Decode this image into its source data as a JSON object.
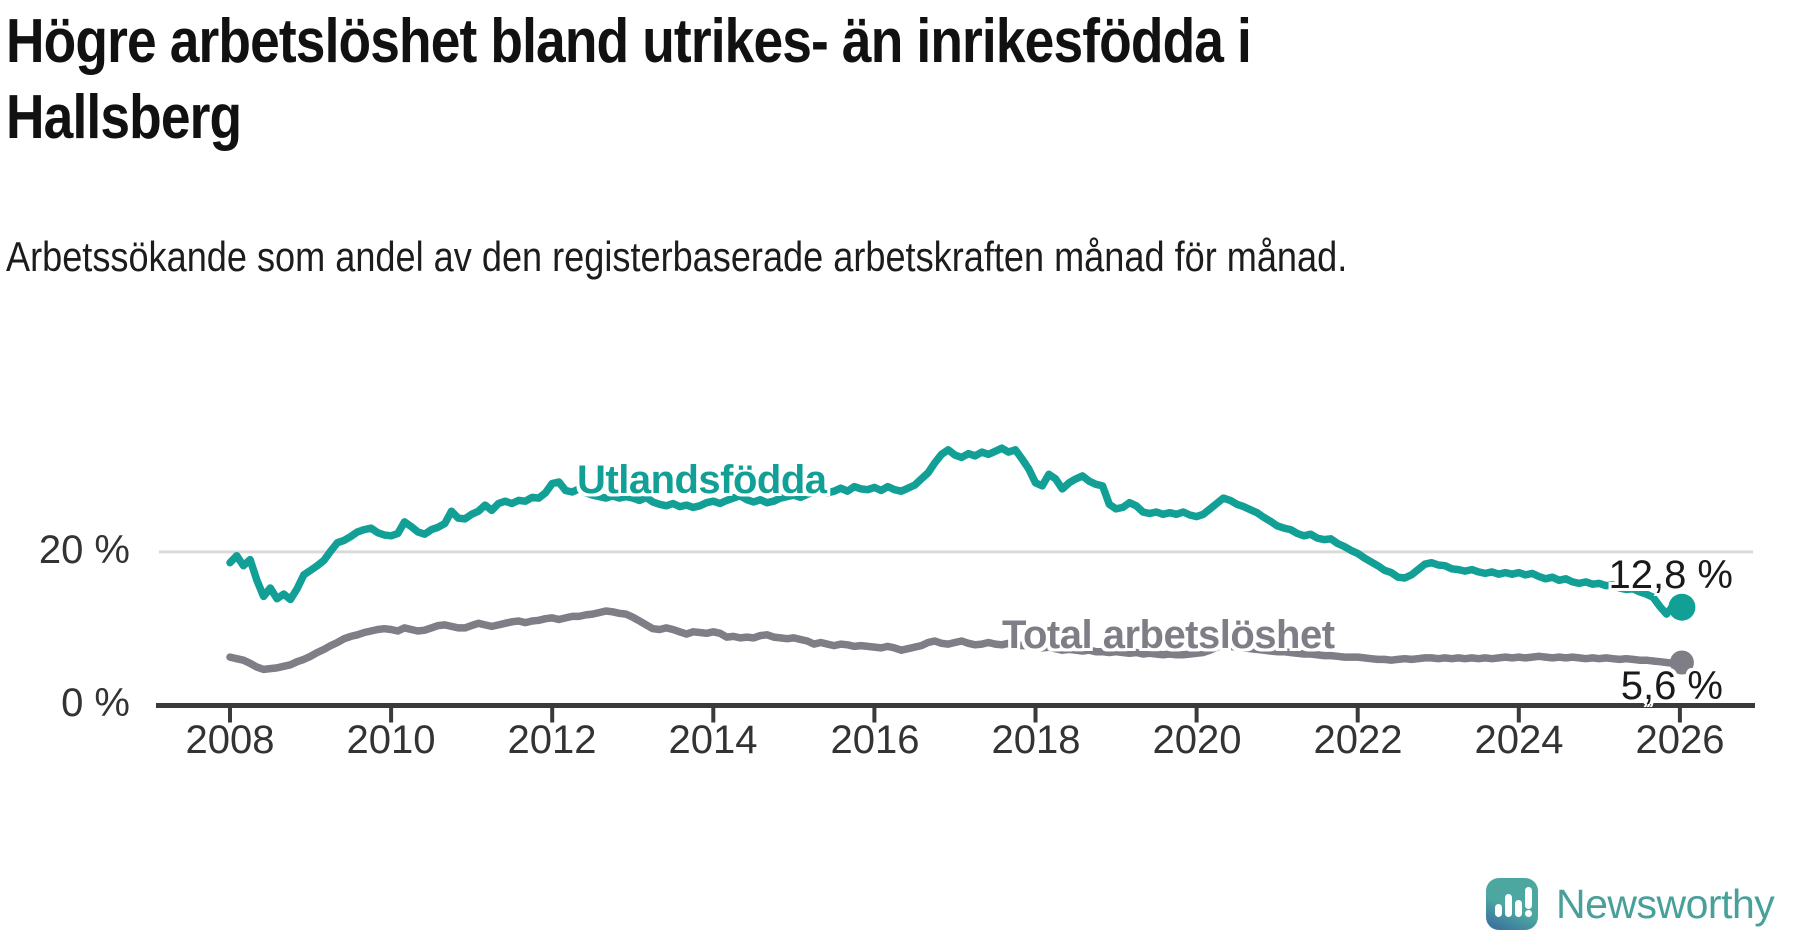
{
  "header": {
    "title": "Högre arbetslöshet bland utrikes- än inrikesfödda i Hallsberg",
    "subtitle": "Arbetssökande som andel av den registerbaserade arbetskraften månad för månad."
  },
  "branding": {
    "logo_text": "Newsworthy"
  },
  "chart_data": {
    "type": "line",
    "title": "Högre arbetslöshet bland utrikes- än inrikesfödda i Hallsberg",
    "subtitle": "Arbetssökande som andel av den registerbaserade arbetskraften månad för månad.",
    "x_unit": "month",
    "x_range": [
      2008,
      2026
    ],
    "x_tick_labels": [
      "2008",
      "2010",
      "2012",
      "2014",
      "2016",
      "2018",
      "2020",
      "2022",
      "2024",
      "2026"
    ],
    "y_tick_labels": {
      "grid": "20 %",
      "base": "0 %"
    },
    "ylim": [
      0,
      35
    ],
    "grid": "single horizontal gridline at 20 %",
    "legend_position": "inline labels on lines",
    "series": [
      {
        "name": "Utlandsfödda",
        "color": "#12a096",
        "end_label": "12,8 %",
        "end_value": 12.8,
        "values": [
          18.6,
          19.5,
          18.2,
          19.0,
          16.3,
          14.2,
          15.3,
          13.9,
          14.5,
          13.8,
          15.2,
          17.0,
          17.6,
          18.2,
          18.9,
          20.1,
          21.2,
          21.5,
          22.0,
          22.6,
          22.9,
          23.1,
          22.5,
          22.2,
          22.1,
          22.4,
          23.9,
          23.3,
          22.6,
          22.3,
          22.9,
          23.2,
          23.7,
          25.3,
          24.4,
          24.3,
          24.9,
          25.3,
          26.1,
          25.4,
          26.3,
          26.6,
          26.3,
          26.7,
          26.6,
          27.1,
          27.0,
          27.7,
          28.9,
          29.1,
          28.0,
          27.8,
          28.2,
          27.7,
          27.4,
          27.2,
          27.0,
          27.3,
          27.0,
          27.2,
          27.0,
          26.7,
          27.1,
          26.5,
          26.2,
          26.0,
          26.3,
          25.9,
          26.1,
          25.8,
          26.0,
          26.4,
          26.6,
          26.3,
          26.7,
          27.0,
          27.3,
          26.8,
          26.5,
          26.8,
          26.4,
          26.6,
          27.0,
          27.2,
          27.4,
          27.1,
          27.5,
          27.8,
          28.1,
          27.7,
          27.9,
          28.3,
          27.9,
          28.5,
          28.2,
          28.1,
          28.4,
          28.0,
          28.5,
          28.1,
          27.9,
          28.3,
          28.7,
          29.5,
          30.3,
          31.6,
          32.7,
          33.3,
          32.6,
          32.3,
          32.8,
          32.5,
          33.0,
          32.7,
          33.1,
          33.5,
          33.0,
          33.3,
          32.1,
          30.8,
          29.0,
          28.6,
          30.1,
          29.5,
          28.2,
          29.0,
          29.5,
          29.9,
          29.2,
          28.8,
          28.6,
          26.2,
          25.6,
          25.8,
          26.4,
          26.0,
          25.2,
          25.0,
          25.2,
          24.9,
          25.1,
          24.9,
          25.2,
          24.8,
          24.6,
          24.9,
          25.6,
          26.3,
          27.0,
          26.7,
          26.2,
          25.9,
          25.5,
          25.1,
          24.5,
          24.0,
          23.4,
          23.1,
          22.9,
          22.4,
          22.1,
          22.3,
          21.8,
          21.6,
          21.7,
          21.1,
          20.7,
          20.2,
          19.8,
          19.2,
          18.7,
          18.2,
          17.6,
          17.3,
          16.7,
          16.6,
          17.0,
          17.7,
          18.4,
          18.6,
          18.3,
          18.2,
          17.8,
          17.7,
          17.5,
          17.7,
          17.4,
          17.2,
          17.4,
          17.1,
          17.3,
          17.1,
          17.3,
          17.0,
          17.2,
          16.8,
          16.5,
          16.7,
          16.3,
          16.5,
          16.1,
          15.9,
          16.1,
          15.8,
          15.9,
          15.6,
          15.7,
          15.3,
          15.1,
          15.2,
          14.8,
          14.5,
          14.1,
          12.9,
          11.9,
          13.0,
          12.8
        ]
      },
      {
        "name": "Total arbetslöshet",
        "color": "#7f7d85",
        "end_label": "5,6 %",
        "end_value": 5.6,
        "values": [
          6.3,
          6.1,
          5.9,
          5.5,
          5.0,
          4.7,
          4.8,
          4.9,
          5.1,
          5.3,
          5.7,
          6.0,
          6.4,
          6.9,
          7.3,
          7.8,
          8.2,
          8.7,
          9.0,
          9.2,
          9.5,
          9.7,
          9.9,
          10.0,
          9.9,
          9.7,
          10.1,
          9.9,
          9.7,
          9.8,
          10.1,
          10.4,
          10.5,
          10.3,
          10.1,
          10.1,
          10.4,
          10.7,
          10.5,
          10.3,
          10.5,
          10.7,
          10.9,
          11.0,
          10.8,
          11.0,
          11.1,
          11.3,
          11.4,
          11.2,
          11.4,
          11.6,
          11.6,
          11.8,
          11.9,
          12.1,
          12.3,
          12.2,
          12.0,
          11.9,
          11.5,
          11.0,
          10.5,
          10.0,
          9.9,
          10.1,
          9.9,
          9.6,
          9.3,
          9.6,
          9.5,
          9.4,
          9.6,
          9.4,
          8.9,
          9.0,
          8.8,
          8.9,
          8.8,
          9.1,
          9.2,
          8.9,
          8.8,
          8.7,
          8.8,
          8.6,
          8.4,
          8.0,
          8.2,
          8.0,
          7.8,
          8.0,
          7.9,
          7.7,
          7.8,
          7.7,
          7.6,
          7.5,
          7.7,
          7.5,
          7.2,
          7.4,
          7.6,
          7.8,
          8.2,
          8.4,
          8.1,
          8.0,
          8.2,
          8.4,
          8.1,
          7.9,
          8.0,
          8.2,
          8.0,
          7.9,
          8.1,
          7.9,
          7.8,
          7.8,
          7.7,
          7.5,
          7.6,
          7.4,
          7.2,
          7.3,
          7.2,
          7.1,
          7.2,
          7.0,
          7.0,
          6.9,
          7.0,
          6.9,
          6.8,
          6.9,
          6.7,
          6.8,
          6.7,
          6.6,
          6.7,
          6.6,
          6.6,
          6.7,
          6.8,
          6.9,
          7.2,
          7.6,
          7.8,
          7.7,
          7.6,
          7.5,
          7.4,
          7.3,
          7.2,
          7.1,
          7.0,
          7.0,
          6.9,
          6.8,
          6.7,
          6.7,
          6.6,
          6.5,
          6.5,
          6.4,
          6.3,
          6.3,
          6.3,
          6.2,
          6.1,
          6.0,
          6.0,
          5.9,
          6.0,
          6.1,
          6.0,
          6.1,
          6.2,
          6.2,
          6.1,
          6.2,
          6.1,
          6.2,
          6.1,
          6.2,
          6.1,
          6.2,
          6.1,
          6.2,
          6.3,
          6.2,
          6.3,
          6.2,
          6.3,
          6.4,
          6.3,
          6.2,
          6.3,
          6.2,
          6.3,
          6.2,
          6.1,
          6.2,
          6.1,
          6.2,
          6.1,
          6.0,
          6.1,
          6.0,
          5.9,
          5.9,
          5.8,
          5.7,
          5.6,
          5.5,
          5.6
        ]
      }
    ],
    "colors": {
      "axis": "#3a3a3a",
      "gridline": "#dadada",
      "tick_label": "#333333",
      "value_label": "#1a1a1a"
    }
  }
}
